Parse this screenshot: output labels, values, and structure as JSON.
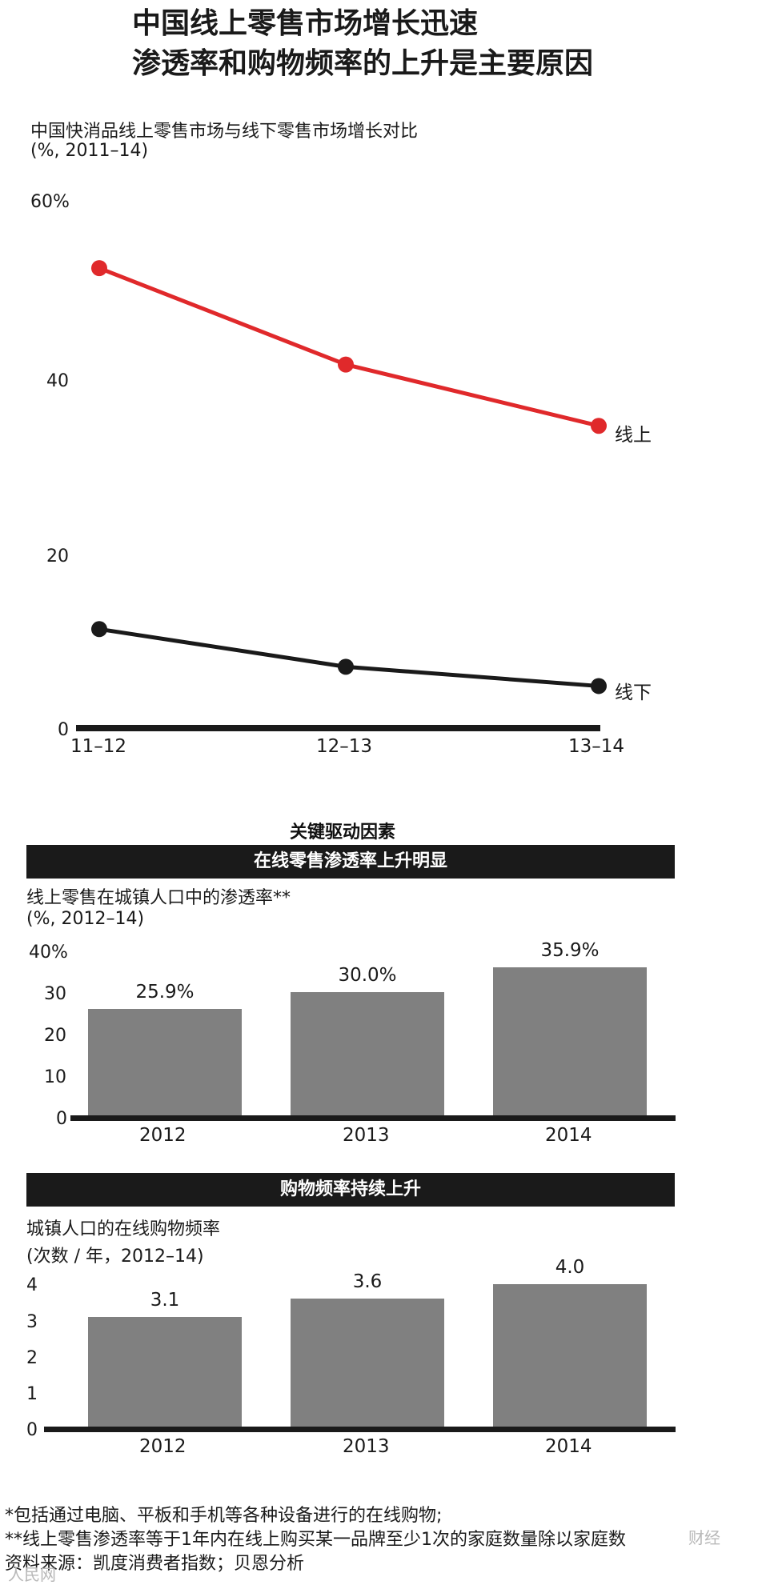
{
  "header": {
    "title_line1": "中国线上零售市场增长迅速",
    "title_line2": "渗透率和购物频率的上升是主要原因"
  },
  "line_chart": {
    "subtitle_line1": "中国快消品线上零售市场与线下零售市场增长对比",
    "subtitle_line2": "(%, 2011–14)",
    "y_ticks": [
      "60%",
      "40",
      "20",
      "0"
    ],
    "x_ticks": [
      "11–12",
      "12–13",
      "13–14"
    ],
    "series_labels": [
      "线上",
      "线下"
    ],
    "colors": {
      "online": "#e0292b",
      "offline": "#1a1a1a"
    }
  },
  "drivers": {
    "section_title": "关键驱动因素"
  },
  "penetration": {
    "header": "在线零售渗透率上升明显",
    "subtitle_line1": "线上零售在城镇人口中的渗透率**",
    "subtitle_line2": "(%, 2012–14)",
    "y_ticks": [
      "40%",
      "30",
      "20",
      "10",
      "0"
    ],
    "x_ticks": [
      "2012",
      "2013",
      "2014"
    ],
    "value_labels": [
      "25.9%",
      "30.0%",
      "35.9%"
    ]
  },
  "frequency": {
    "header": "购物频率持续上升",
    "subtitle_line1": "城镇人口的在线购物频率",
    "subtitle_line2": "(次数 / 年，2012–14)",
    "y_ticks": [
      "4",
      "3",
      "2",
      "1",
      "0"
    ],
    "x_ticks": [
      "2012",
      "2013",
      "2014"
    ],
    "value_labels": [
      "3.1",
      "3.6",
      "4.0"
    ]
  },
  "footnotes": {
    "note1": "*包括通过电脑、平板和手机等各种设备进行的在线购物;",
    "note2": "**线上零售渗透率等于1年内在线上购买某一品牌至少1次的家庭数量除以家庭数",
    "note3": "资料来源：凯度消费者指数；贝恩分析"
  },
  "watermarks": {
    "bottom_left": "人民网",
    "bottom_right": "财经"
  },
  "chart_data": [
    {
      "type": "line",
      "title": "中国快消品线上零售市场与线下零售市场增长对比",
      "subtitle": "(%, 2011–14)",
      "categories": [
        "11–12",
        "12–13",
        "13–14"
      ],
      "series": [
        {
          "name": "线上",
          "values": [
            52.5,
            41.5,
            34.5
          ]
        },
        {
          "name": "线下",
          "values": [
            11.3,
            7,
            4.8
          ]
        }
      ],
      "ylim": [
        0,
        60
      ],
      "grid": false,
      "legend": "inline-right"
    },
    {
      "type": "bar",
      "title": "线上零售在城镇人口中的渗透率**",
      "subtitle": "(%, 2012–14)",
      "categories": [
        "2012",
        "2013",
        "2014"
      ],
      "values": [
        25.9,
        30.0,
        35.9
      ],
      "ylim": [
        0,
        40
      ],
      "grid": false
    },
    {
      "type": "bar",
      "title": "城镇人口的在线购物频率",
      "subtitle": "(次数 / 年，2012–14)",
      "categories": [
        "2012",
        "2013",
        "2014"
      ],
      "values": [
        3.1,
        3.6,
        4.0
      ],
      "ylim": [
        0,
        4
      ],
      "grid": false
    }
  ]
}
